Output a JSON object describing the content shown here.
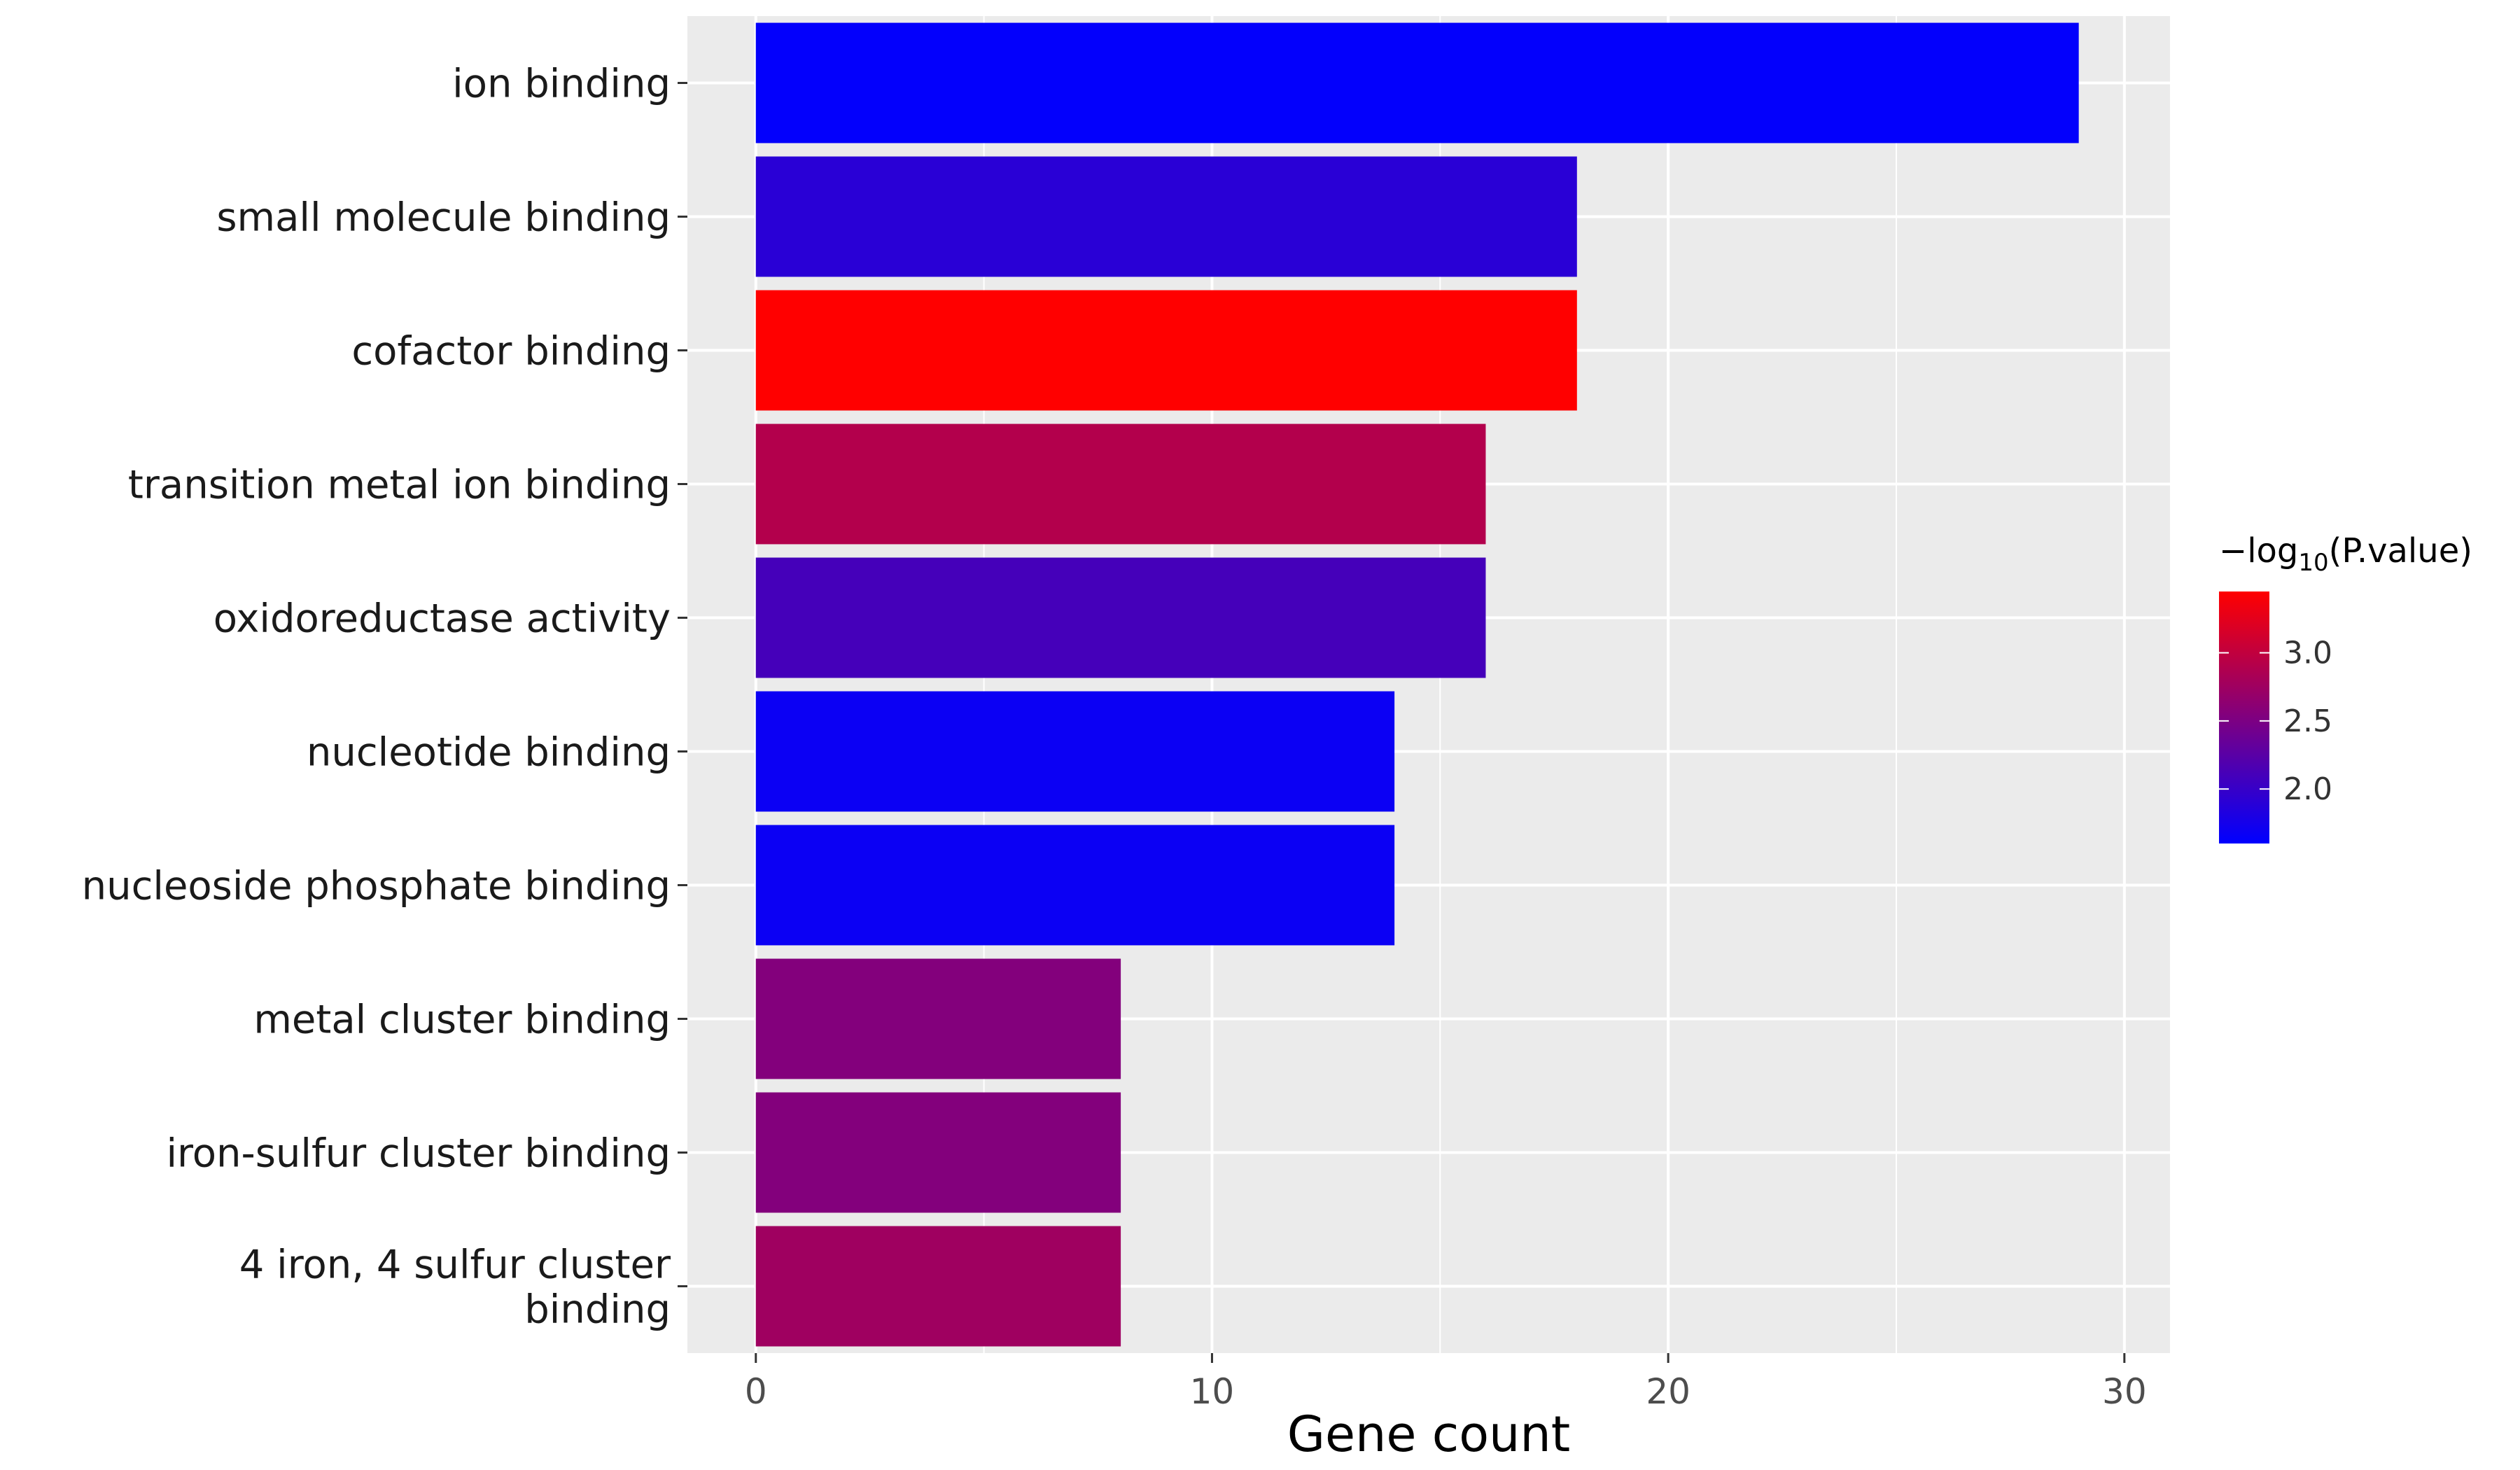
{
  "chart_data": {
    "type": "bar",
    "orientation": "horizontal",
    "categories": [
      "ion binding",
      "small molecule binding",
      "cofactor binding",
      "transition metal ion binding",
      "oxidoreductase activity",
      "nucleotide binding",
      "nucleoside phosphate binding",
      "metal cluster binding",
      "iron-sulfur cluster binding",
      "4 iron, 4 sulfur cluster binding"
    ],
    "category_lines": [
      [
        "ion binding"
      ],
      [
        "small molecule binding"
      ],
      [
        "cofactor binding"
      ],
      [
        "transition metal ion binding"
      ],
      [
        "oxidoreductase activity"
      ],
      [
        "nucleotide binding"
      ],
      [
        "nucleoside phosphate binding"
      ],
      [
        "metal cluster binding"
      ],
      [
        "iron-sulfur cluster binding"
      ],
      [
        "4 iron, 4 sulfur cluster",
        "binding"
      ]
    ],
    "values": [
      29,
      18,
      18,
      16,
      16,
      14,
      14,
      8,
      8,
      8
    ],
    "color_values": [
      1.62,
      1.9,
      3.45,
      2.9,
      2.1,
      1.68,
      1.68,
      2.55,
      2.55,
      2.75
    ],
    "xlabel": "Gene count",
    "ylabel": "",
    "xlim": [
      -1.5,
      31
    ],
    "xticks": [
      0,
      10,
      20,
      30
    ],
    "grid": true,
    "legend": {
      "title_prefix": "−log",
      "title_sub": "10",
      "title_suffix": "(P.value)",
      "range": [
        1.6,
        3.45
      ],
      "ticks": [
        2.0,
        2.5,
        3.0
      ],
      "tick_labels": [
        "2.0",
        "2.5",
        "3.0"
      ],
      "low_color": "#0000ff",
      "high_color": "#ff0000",
      "position": "right"
    },
    "panel_color": "#ebebeb",
    "grid_color": "#ffffff"
  }
}
